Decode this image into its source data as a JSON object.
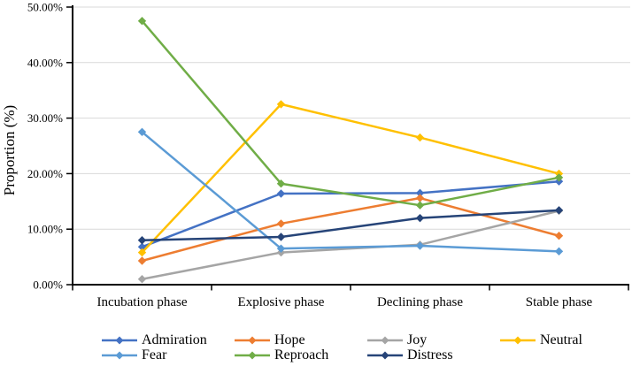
{
  "chart_data": {
    "type": "line",
    "title": "",
    "xlabel": "",
    "ylabel": "Proportion (%)",
    "categories": [
      "Incubation phase",
      "Explosive phase",
      "Declining phase",
      "Stable phase"
    ],
    "y_ticks": [
      "0.00%",
      "10.00%",
      "20.00%",
      "30.00%",
      "40.00%",
      "50.00%"
    ],
    "ylim": [
      0,
      50
    ],
    "grid": true,
    "legend_position": "bottom",
    "marker": "diamond",
    "axis_color": "#000000",
    "gridline_color": "#D9D9D9",
    "series": [
      {
        "name": "Admiration",
        "color": "#4472C4",
        "values": [
          6.8,
          16.4,
          16.5,
          18.6
        ]
      },
      {
        "name": "Hope",
        "color": "#ED7D31",
        "values": [
          4.3,
          11.0,
          15.6,
          8.8
        ]
      },
      {
        "name": "Joy",
        "color": "#A5A5A5",
        "values": [
          1.0,
          5.8,
          7.2,
          13.3
        ]
      },
      {
        "name": "Neutral",
        "color": "#FFC000",
        "values": [
          5.8,
          32.5,
          26.5,
          20.0
        ]
      },
      {
        "name": "Fear",
        "color": "#5B9BD5",
        "values": [
          27.5,
          6.5,
          7.0,
          6.0
        ]
      },
      {
        "name": "Reproach",
        "color": "#70AD47",
        "values": [
          47.5,
          18.2,
          14.3,
          19.3
        ]
      },
      {
        "name": "Distress",
        "color": "#264478",
        "values": [
          8.0,
          8.6,
          12.0,
          13.4
        ]
      }
    ],
    "legend_rows": [
      [
        0,
        1,
        2,
        3
      ],
      [
        4,
        5,
        6
      ]
    ]
  }
}
